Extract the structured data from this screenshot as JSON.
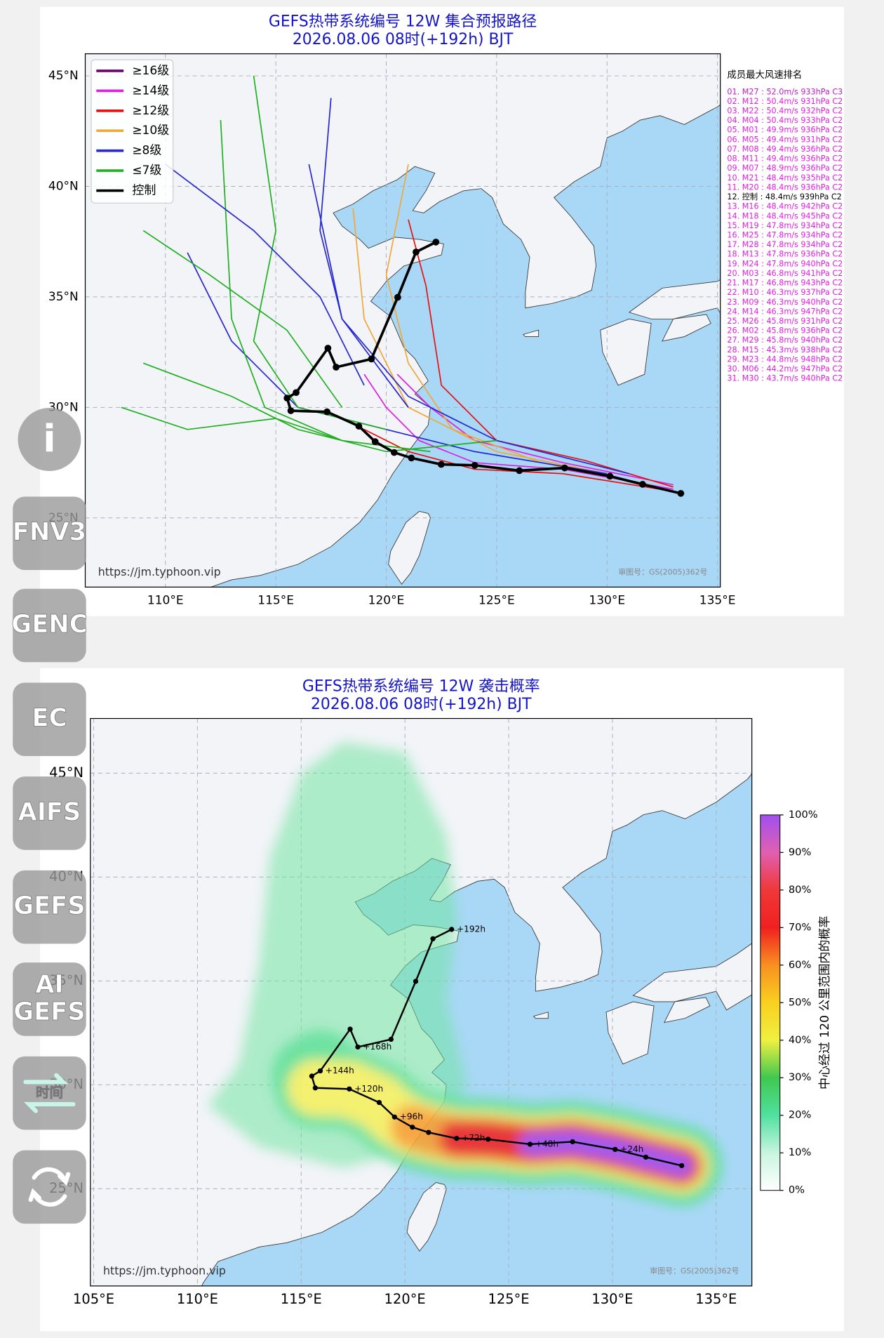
{
  "maps": [
    {
      "title": "GEFS热带系统编号 12W 集合预报路径",
      "subtitle": "2026.08.06 08时(+192h) BJT",
      "xlim": [
        106.37,
        135.13
      ],
      "ylim": [
        21.87,
        46.0
      ],
      "xticks": [
        {
          "value": 110,
          "label": "110°E"
        },
        {
          "value": 115,
          "label": "115°E"
        },
        {
          "value": 120,
          "label": "120°E"
        },
        {
          "value": 125,
          "label": "125°E"
        },
        {
          "value": 130,
          "label": "130°E"
        },
        {
          "value": 135,
          "label": "135°E"
        }
      ],
      "yticks": [
        {
          "value": 25,
          "label": "25°N"
        },
        {
          "value": 30,
          "label": "30°N"
        },
        {
          "value": 35,
          "label": "35°N"
        },
        {
          "value": 40,
          "label": "40°N"
        },
        {
          "value": 45,
          "label": "45°N"
        }
      ],
      "legend": [
        {
          "label": "≥16级",
          "color": "#700070"
        },
        {
          "label": "≥14级",
          "color": "#e020e0"
        },
        {
          "label": "≥12级",
          "color": "#e81010"
        },
        {
          "label": "≥10级",
          "color": "#f0a838"
        },
        {
          "label": "≥8级",
          "color": "#2828d0"
        },
        {
          "label": "≤7级",
          "color": "#20b020"
        },
        {
          "label": "控制",
          "color": "#000000"
        }
      ],
      "members": [
        {
          "color": "#e020e0",
          "lon": [
            133,
            128,
            124,
            121.5,
            120,
            119
          ],
          "lat": [
            26.3,
            27.2,
            27.5,
            28.5,
            30,
            31.5
          ]
        },
        {
          "color": "#e020e0",
          "lon": [
            133,
            128,
            124,
            122,
            120.5
          ],
          "lat": [
            26.5,
            27.5,
            28.5,
            30,
            31.5
          ]
        },
        {
          "color": "#e81010",
          "lon": [
            133,
            129,
            125,
            122.5,
            121.8,
            121
          ],
          "lat": [
            26.4,
            27.6,
            28.5,
            31,
            35.5,
            38.5
          ]
        },
        {
          "color": "#e81010",
          "lon": [
            133,
            128,
            124,
            121,
            119
          ],
          "lat": [
            26.2,
            27,
            27.2,
            28,
            29
          ]
        },
        {
          "color": "#f0a838",
          "lon": [
            132,
            127,
            123,
            121,
            120,
            121
          ],
          "lat": [
            26.5,
            27.5,
            29,
            32,
            36,
            41
          ]
        },
        {
          "color": "#f0a838",
          "lon": [
            130,
            125,
            121,
            119,
            118.5
          ],
          "lat": [
            27,
            28,
            30,
            34,
            39
          ]
        },
        {
          "color": "#2828d0",
          "lon": [
            131,
            125,
            121,
            118,
            116.5
          ],
          "lat": [
            27,
            28.5,
            30.5,
            34,
            41
          ]
        },
        {
          "color": "#2828d0",
          "lon": [
            130,
            124,
            120,
            116,
            113,
            111
          ],
          "lat": [
            27,
            28,
            29,
            30,
            33,
            37
          ]
        },
        {
          "color": "#20b020",
          "lon": [
            125,
            120,
            116,
            113,
            109
          ],
          "lat": [
            28.5,
            28,
            29,
            30.5,
            32
          ]
        },
        {
          "color": "#20b020",
          "lon": [
            122,
            118,
            114.5,
            113,
            112.5
          ],
          "lat": [
            28,
            28.5,
            30,
            34,
            43
          ]
        },
        {
          "color": "#20b020",
          "lon": [
            120,
            116,
            114,
            115,
            114
          ],
          "lat": [
            29,
            30,
            33,
            38,
            45
          ]
        },
        {
          "color": "#2828d0",
          "lon": [
            121,
            118,
            117,
            117.5
          ],
          "lat": [
            30,
            34,
            38,
            44
          ]
        },
        {
          "color": "#20b020",
          "lon": [
            118,
            115,
            111,
            108
          ],
          "lat": [
            28.5,
            29.5,
            29,
            30
          ]
        },
        {
          "color": "#20b020",
          "lon": [
            118,
            115.5,
            112,
            109
          ],
          "lat": [
            30,
            33.5,
            36,
            38
          ]
        },
        {
          "color": "#2828d0",
          "lon": [
            119,
            117,
            114,
            110
          ],
          "lat": [
            31,
            35,
            38,
            41
          ]
        }
      ],
      "control": {
        "lon": [
          133.34,
          131.61,
          130.13,
          128.08,
          126.03,
          124.01,
          122.49,
          121.14,
          120.36,
          119.5,
          118.76,
          117.32,
          115.68,
          115.51,
          115.92,
          117.36,
          117.73,
          119.33,
          120.52,
          121.35,
          122.25
        ],
        "lat": [
          26.11,
          26.52,
          26.89,
          27.26,
          27.14,
          27.38,
          27.42,
          27.71,
          27.96,
          28.45,
          29.15,
          29.8,
          29.85,
          30.42,
          30.67,
          32.68,
          31.82,
          32.19,
          34.98,
          37.03,
          37.48
        ]
      },
      "ranking": {
        "heading": "成员最大风速排名",
        "entries": [
          {
            "text": "01. M27 : 52.0m/s 933hPa C3",
            "color": "#c020c0"
          },
          {
            "text": "02. M12 : 50.4m/s 931hPa C2",
            "color": "#e020e0"
          },
          {
            "text": "03. M22 : 50.4m/s 932hPa C2",
            "color": "#e020e0"
          },
          {
            "text": "04. M04 : 50.4m/s 933hPa C2",
            "color": "#e020e0"
          },
          {
            "text": "05. M01 : 49.9m/s 936hPa C2",
            "color": "#e020e0"
          },
          {
            "text": "06. M05 : 49.4m/s 931hPa C2",
            "color": "#e020e0"
          },
          {
            "text": "07. M08 : 49.4m/s 936hPa C2",
            "color": "#e020e0"
          },
          {
            "text": "08. M11 : 49.4m/s 936hPa C2",
            "color": "#e020e0"
          },
          {
            "text": "09. M07 : 48.9m/s 936hPa C2",
            "color": "#e020e0"
          },
          {
            "text": "10. M21 : 48.4m/s 935hPa C2",
            "color": "#e020e0"
          },
          {
            "text": "11. M20 : 48.4m/s 936hPa C2",
            "color": "#e020e0"
          },
          {
            "text": "12. 控制 : 48.4m/s 939hPa C2",
            "color": "#000000"
          },
          {
            "text": "13. M16 : 48.4m/s 942hPa C2",
            "color": "#e020e0"
          },
          {
            "text": "14. M18 : 48.4m/s 945hPa C2",
            "color": "#e020e0"
          },
          {
            "text": "15. M19 : 47.8m/s 934hPa C2",
            "color": "#e020e0"
          },
          {
            "text": "16. M25 : 47.8m/s 934hPa C2",
            "color": "#e020e0"
          },
          {
            "text": "17. M28 : 47.8m/s 934hPa C2",
            "color": "#e020e0"
          },
          {
            "text": "18. M13 : 47.8m/s 936hPa C2",
            "color": "#e020e0"
          },
          {
            "text": "19. M24 : 47.8m/s 940hPa C2",
            "color": "#e020e0"
          },
          {
            "text": "20. M03 : 46.8m/s 941hPa C2",
            "color": "#e020e0"
          },
          {
            "text": "21. M17 : 46.8m/s 943hPa C2",
            "color": "#e020e0"
          },
          {
            "text": "22. M10 : 46.3m/s 937hPa C2",
            "color": "#e020e0"
          },
          {
            "text": "23. M09 : 46.3m/s 940hPa C2",
            "color": "#e020e0"
          },
          {
            "text": "24. M14 : 46.3m/s 947hPa C2",
            "color": "#e020e0"
          },
          {
            "text": "25. M26 : 45.8m/s 931hPa C2",
            "color": "#e020e0"
          },
          {
            "text": "26. M02 : 45.8m/s 936hPa C2",
            "color": "#e020e0"
          },
          {
            "text": "27. M29 : 45.8m/s 940hPa C2",
            "color": "#e020e0"
          },
          {
            "text": "28. M15 : 45.3m/s 938hPa C2",
            "color": "#e020e0"
          },
          {
            "text": "29. M23 : 44.8m/s 948hPa C2",
            "color": "#e020e0"
          },
          {
            "text": "30. M06 : 44.2m/s 947hPa C2",
            "color": "#e020e0"
          },
          {
            "text": "31. M30 : 43.7m/s 940hPa C2",
            "color": "#e020e0"
          }
        ]
      },
      "watermark": "https://jm.typhoon.vip",
      "approval": "审图号：GS(2005)362号"
    },
    {
      "title": "GEFS热带系统编号 12W 袭击概率",
      "subtitle": "2026.08.06 08时(+192h) BJT",
      "xlim": [
        104.84,
        136.72
      ],
      "ylim": [
        20.32,
        47.63
      ],
      "xticks": [
        {
          "value": 105,
          "label": "105°E"
        },
        {
          "value": 110,
          "label": "110°E"
        },
        {
          "value": 115,
          "label": "115°E"
        },
        {
          "value": 120,
          "label": "120°E"
        },
        {
          "value": 125,
          "label": "125°E"
        },
        {
          "value": 130,
          "label": "130°E"
        },
        {
          "value": 135,
          "label": "135°E"
        }
      ],
      "yticks": [
        {
          "value": 25,
          "label": "25°N"
        },
        {
          "value": 30,
          "label": "30°N"
        },
        {
          "value": 35,
          "label": "35°N"
        },
        {
          "value": 40,
          "label": "40°N"
        },
        {
          "value": 45,
          "label": "45°N"
        }
      ],
      "control": {
        "lon": [
          133.34,
          131.61,
          130.13,
          128.08,
          126.03,
          124.01,
          122.49,
          121.14,
          120.36,
          119.5,
          118.76,
          117.32,
          115.68,
          115.51,
          115.92,
          117.36,
          117.73,
          119.33,
          120.52,
          121.35,
          122.25
        ],
        "lat": [
          26.11,
          26.52,
          26.89,
          27.26,
          27.14,
          27.38,
          27.42,
          27.71,
          27.96,
          28.45,
          29.15,
          29.8,
          29.85,
          30.42,
          30.67,
          32.68,
          31.82,
          32.19,
          34.98,
          37.03,
          37.48
        ],
        "labels": [
          null,
          null,
          "+24h",
          null,
          "+48h",
          null,
          "+72h",
          null,
          null,
          "+96h",
          null,
          "+120h",
          null,
          null,
          "+144h",
          null,
          "+168h",
          null,
          null,
          null,
          "+192h"
        ]
      },
      "colorbar": {
        "label": "中心经过 120 公里范围内的概率",
        "lim": [
          0,
          100
        ],
        "ticks": [
          {
            "value": 0,
            "label": "0%"
          },
          {
            "value": 10,
            "label": "10%"
          },
          {
            "value": 20,
            "label": "20%"
          },
          {
            "value": 30,
            "label": "30%"
          },
          {
            "value": 40,
            "label": "40%"
          },
          {
            "value": 50,
            "label": "50%"
          },
          {
            "value": 60,
            "label": "60%"
          },
          {
            "value": 70,
            "label": "70%"
          },
          {
            "value": 80,
            "label": "80%"
          },
          {
            "value": 90,
            "label": "90%"
          },
          {
            "value": 100,
            "label": "100%"
          }
        ]
      },
      "watermark": "https://jm.typhoon.vip",
      "approval": "审图号：GS(2005)362号"
    }
  ],
  "sidebar": {
    "info": "i",
    "buttons": [
      [
        "FNV3"
      ],
      [
        "GENC"
      ],
      [
        "EC"
      ],
      [
        "AIFS"
      ],
      [
        "GEFS"
      ],
      [
        "AI",
        "GEFS"
      ],
      [
        "时间"
      ]
    ]
  }
}
